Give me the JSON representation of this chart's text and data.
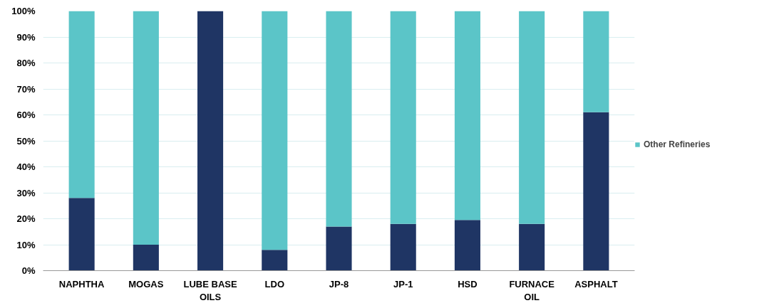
{
  "chart_data": {
    "type": "bar",
    "stacked": true,
    "categories": [
      "NAPHTHA",
      "MOGAS",
      "LUBE BASE OILS",
      "LDO",
      "JP-8",
      "JP-1",
      "HSD",
      "FURNACE OIL",
      "ASPHALT"
    ],
    "series": [
      {
        "color": "#1f3564",
        "values": [
          28,
          10,
          100,
          8,
          17,
          18,
          19.5,
          18,
          61
        ]
      },
      {
        "name": "Other Refineries",
        "color": "#5bc5c8",
        "values": [
          72,
          90,
          0,
          92,
          83,
          82,
          80.5,
          82,
          39
        ]
      }
    ],
    "ylim": [
      0,
      100
    ],
    "yticks": [
      {
        "value": 0,
        "label": "0%"
      },
      {
        "value": 10,
        "label": "10%"
      },
      {
        "value": 20,
        "label": "20%"
      },
      {
        "value": 30,
        "label": "30%"
      },
      {
        "value": 40,
        "label": "40%"
      },
      {
        "value": 50,
        "label": "50%"
      },
      {
        "value": 60,
        "label": "60%"
      },
      {
        "value": 70,
        "label": "70%"
      },
      {
        "value": 80,
        "label": "80%"
      },
      {
        "value": 90,
        "label": "90%"
      },
      {
        "value": 100,
        "label": "100%"
      }
    ],
    "grid": "y",
    "legend": "right"
  }
}
